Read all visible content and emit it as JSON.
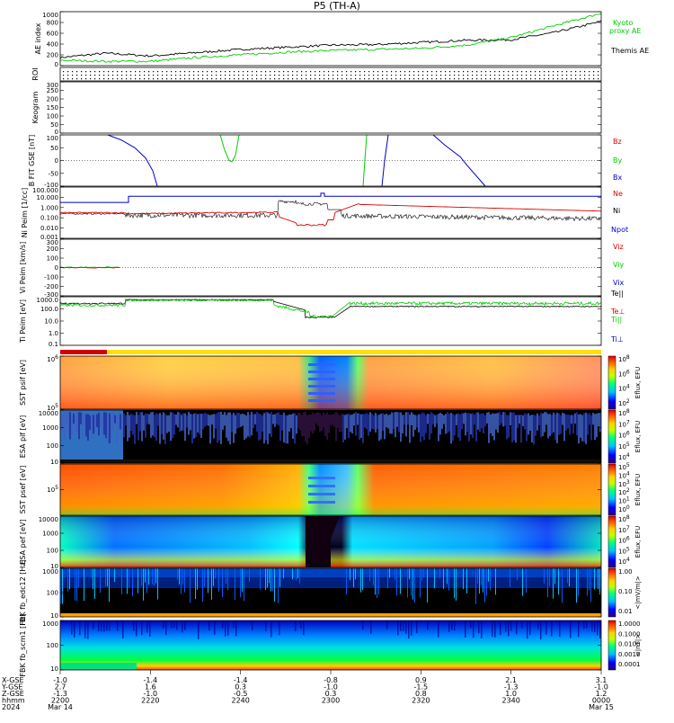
{
  "title": "P5 (TH-A)",
  "chart_data": [
    {
      "type": "line",
      "panel": "ae",
      "ylabel": "AE index",
      "ylim": [
        0,
        1000
      ],
      "yticks": [
        "1000",
        "800",
        "600",
        "400",
        "200",
        "0"
      ],
      "legend": [
        "Kyoto",
        "proxy AE",
        "Themis AE"
      ],
      "colors": {
        "kyoto": "#00cc00",
        "themis": "#000000"
      },
      "series": [
        {
          "name": "Themis AE",
          "x": [
            0,
            10,
            20,
            30,
            40,
            50,
            60,
            70,
            80,
            90,
            100,
            110,
            120
          ],
          "values": [
            150,
            230,
            180,
            240,
            300,
            340,
            380,
            390,
            430,
            470,
            480,
            620,
            820
          ]
        },
        {
          "name": "Kyoto proxy AE",
          "x": [
            0,
            10,
            20,
            30,
            40,
            50,
            60,
            70,
            80,
            90,
            100,
            110,
            120
          ],
          "values": [
            100,
            80,
            80,
            150,
            200,
            250,
            280,
            300,
            320,
            380,
            520,
            750,
            970
          ]
        }
      ]
    },
    {
      "type": "heatmap",
      "panel": "roi",
      "ylabel": "ROI",
      "note_rows": 3
    },
    {
      "type": "heatmap",
      "panel": "keogram",
      "ylabel": "Keogram",
      "yticks": [
        "300",
        "250",
        "200",
        "150",
        "100",
        "50",
        "0"
      ]
    },
    {
      "type": "line",
      "panel": "bfield",
      "ylabel": "B FIT GSE [nT]",
      "ylim": [
        -100,
        100
      ],
      "yticks": [
        "100",
        "50",
        "0",
        "-50",
        "-100"
      ],
      "legend": [
        "Bz",
        "By",
        "Bx"
      ],
      "colors": {
        "Bz": "#dd0000",
        "By": "#00cc00",
        "Bx": "#0000cc"
      }
    },
    {
      "type": "line",
      "panel": "density",
      "ylabel": "Ni Peim [1/cc]",
      "yticks": [
        "100.000",
        "10.000",
        "1.000",
        "0.100",
        "0.010",
        "0.001"
      ],
      "legend": [
        "Ne",
        "Ni",
        "Npot"
      ],
      "colors": {
        "Ne": "#dd0000",
        "Ni": "#000000",
        "Npot": "#0000cc"
      }
    },
    {
      "type": "line",
      "panel": "velocity",
      "ylabel": "Vi Peim [km/s]",
      "ylim": [
        -300,
        300
      ],
      "yticks": [
        "300",
        "200",
        "100",
        "0",
        "-100",
        "-200",
        "-300"
      ],
      "legend": [
        "Viz",
        "Viy",
        "Vix"
      ],
      "colors": {
        "Viz": "#dd0000",
        "Viy": "#00cc00",
        "Vix": "#0000cc"
      }
    },
    {
      "type": "line",
      "panel": "temperature",
      "ylabel": "Ti Peim [eV]",
      "yticks": [
        "1000.0",
        "100.0",
        "10.0",
        "1.0",
        "0.1"
      ],
      "legend": [
        "Te||",
        "Te⊥",
        "Ti||",
        "Ti⊥"
      ],
      "colors": {
        "Te||": "#000000",
        "Te⊥": "#dd0000",
        "Ti||": "#00cc00",
        "Ti⊥": "#0000cc"
      }
    },
    {
      "type": "heatmap",
      "panel": "sst_ion",
      "ylabel": "SST psif [eV]",
      "yticks": [
        "10^6",
        "10^5"
      ],
      "cbar_label": "Eflux, EFU",
      "cbar_ticks": [
        "10^8",
        "10^6",
        "10^4",
        "10^2"
      ]
    },
    {
      "type": "heatmap",
      "panel": "esa_ion",
      "ylabel": "ESA pif [eV]",
      "yticks": [
        "10000",
        "1000",
        "100",
        "10"
      ],
      "cbar_label": "Eflux, EFU",
      "cbar_ticks": [
        "10^8",
        "10^7",
        "10^6",
        "10^5",
        "10^4"
      ]
    },
    {
      "type": "heatmap",
      "panel": "sst_elec",
      "ylabel": "SST psef [eV]",
      "yticks": [
        "10^5"
      ],
      "cbar_label": "Eflux, EFU",
      "cbar_ticks": [
        "10^5",
        "10^4",
        "10^3",
        "10^2",
        "10^1",
        "10^0"
      ]
    },
    {
      "type": "heatmap",
      "panel": "esa_elec",
      "ylabel": "ESA pef [eV]",
      "yticks": [
        "10000",
        "1000",
        "100",
        "10"
      ],
      "cbar_label": "Eflux, EFU",
      "cbar_ticks": [
        "10^8",
        "10^7",
        "10^6",
        "10^5",
        "10^4"
      ]
    },
    {
      "type": "heatmap",
      "panel": "fbk_e",
      "ylabel": "FBK fb_edc12 [Hz]",
      "yticks": [
        "1000",
        "100",
        "10"
      ],
      "cbar_label": "<|mV/m|>",
      "cbar_ticks": [
        "1.00",
        "0.10",
        "0.01"
      ]
    },
    {
      "type": "heatmap",
      "panel": "fbk_b",
      "ylabel": "FBK fb_scm1 [Hz]",
      "yticks": [
        "1000",
        "100",
        "10"
      ],
      "cbar_label": "<|nT|>",
      "cbar_ticks": [
        "1.0000",
        "0.1000",
        "0.0100",
        "0.0010",
        "0.0001"
      ]
    }
  ],
  "xaxis": {
    "row_labels": [
      "X-GSE",
      "Y-GSE",
      "Z-GSE",
      "hhmm",
      "2024"
    ],
    "ticks": [
      {
        "x": "-1.0",
        "y": "2.7",
        "z": "-1.3",
        "t": "2200",
        "d": "Mar 14"
      },
      {
        "x": "-1.4",
        "y": "1.6",
        "z": "-1.0",
        "t": "2220",
        "d": ""
      },
      {
        "x": "-1.4",
        "y": "0.3",
        "z": "-0.5",
        "t": "2240",
        "d": ""
      },
      {
        "x": "-0.8",
        "y": "-1.0",
        "z": "0.3",
        "t": "2300",
        "d": ""
      },
      {
        "x": "0.9",
        "y": "-1.5",
        "z": "0.8",
        "t": "2320",
        "d": ""
      },
      {
        "x": "2.1",
        "y": "-1.3",
        "z": "1.0",
        "t": "2340",
        "d": ""
      },
      {
        "x": "3.1",
        "y": "-1.0",
        "z": "1.2",
        "t": "0000",
        "d": "Mar 15"
      }
    ]
  }
}
